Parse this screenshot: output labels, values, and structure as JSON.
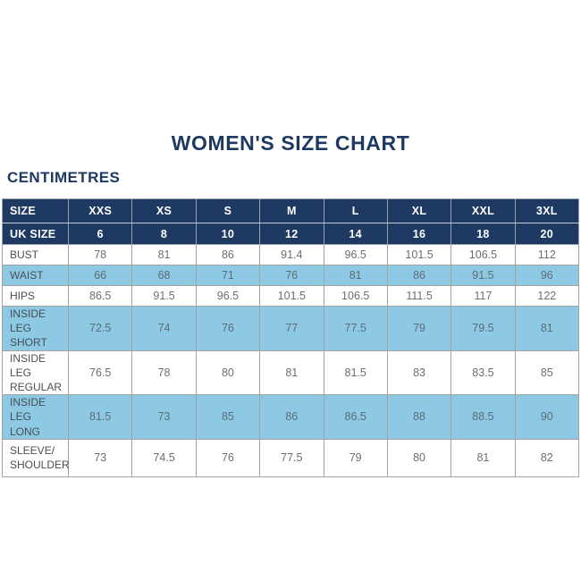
{
  "page": {
    "title": "WOMEN'S SIZE CHART",
    "unit_label": "CENTIMETRES"
  },
  "colors": {
    "navy_header": "#1e3a63",
    "highlight_blue": "#8ec9e4",
    "border_gray": "#a3a3a3",
    "title_text": "#1e3a63",
    "value_text": "#6e6e6e"
  },
  "chart_data": {
    "type": "table",
    "title": "WOMEN'S SIZE CHART",
    "units": "CENTIMETRES",
    "header_rows": [
      {
        "label": "SIZE",
        "values": [
          "XXS",
          "XS",
          "S",
          "M",
          "L",
          "XL",
          "XXL",
          "3XL"
        ]
      },
      {
        "label": "UK SIZE",
        "values": [
          "6",
          "8",
          "10",
          "12",
          "14",
          "16",
          "18",
          "20"
        ]
      }
    ],
    "rows": [
      {
        "label": "BUST",
        "highlight": false,
        "values": [
          "78",
          "81",
          "86",
          "91.4",
          "96.5",
          "101.5",
          "106.5",
          "112"
        ]
      },
      {
        "label": "WAIST",
        "highlight": true,
        "values": [
          "66",
          "68",
          "71",
          "76",
          "81",
          "86",
          "91.5",
          "96"
        ]
      },
      {
        "label": "HIPS",
        "highlight": false,
        "values": [
          "86.5",
          "91.5",
          "96.5",
          "101.5",
          "106.5",
          "111.5",
          "117",
          "122"
        ]
      },
      {
        "label": "INSIDE LEG\nSHORT",
        "highlight": true,
        "values": [
          "72.5",
          "74",
          "76",
          "77",
          "77.5",
          "79",
          "79.5",
          "81"
        ]
      },
      {
        "label": "INSIDE LEG\nREGULAR",
        "highlight": false,
        "values": [
          "76.5",
          "78",
          "80",
          "81",
          "81.5",
          "83",
          "83.5",
          "85"
        ]
      },
      {
        "label": "INSIDE LEG\nLONG",
        "highlight": true,
        "values": [
          "81.5",
          "73",
          "85",
          "86",
          "86.5",
          "88",
          "88.5",
          "90"
        ]
      },
      {
        "label": "SLEEVE/\nSHOULDER",
        "highlight": false,
        "values": [
          "73",
          "74.5",
          "76",
          "77.5",
          "79",
          "80",
          "81",
          "82"
        ]
      }
    ]
  }
}
